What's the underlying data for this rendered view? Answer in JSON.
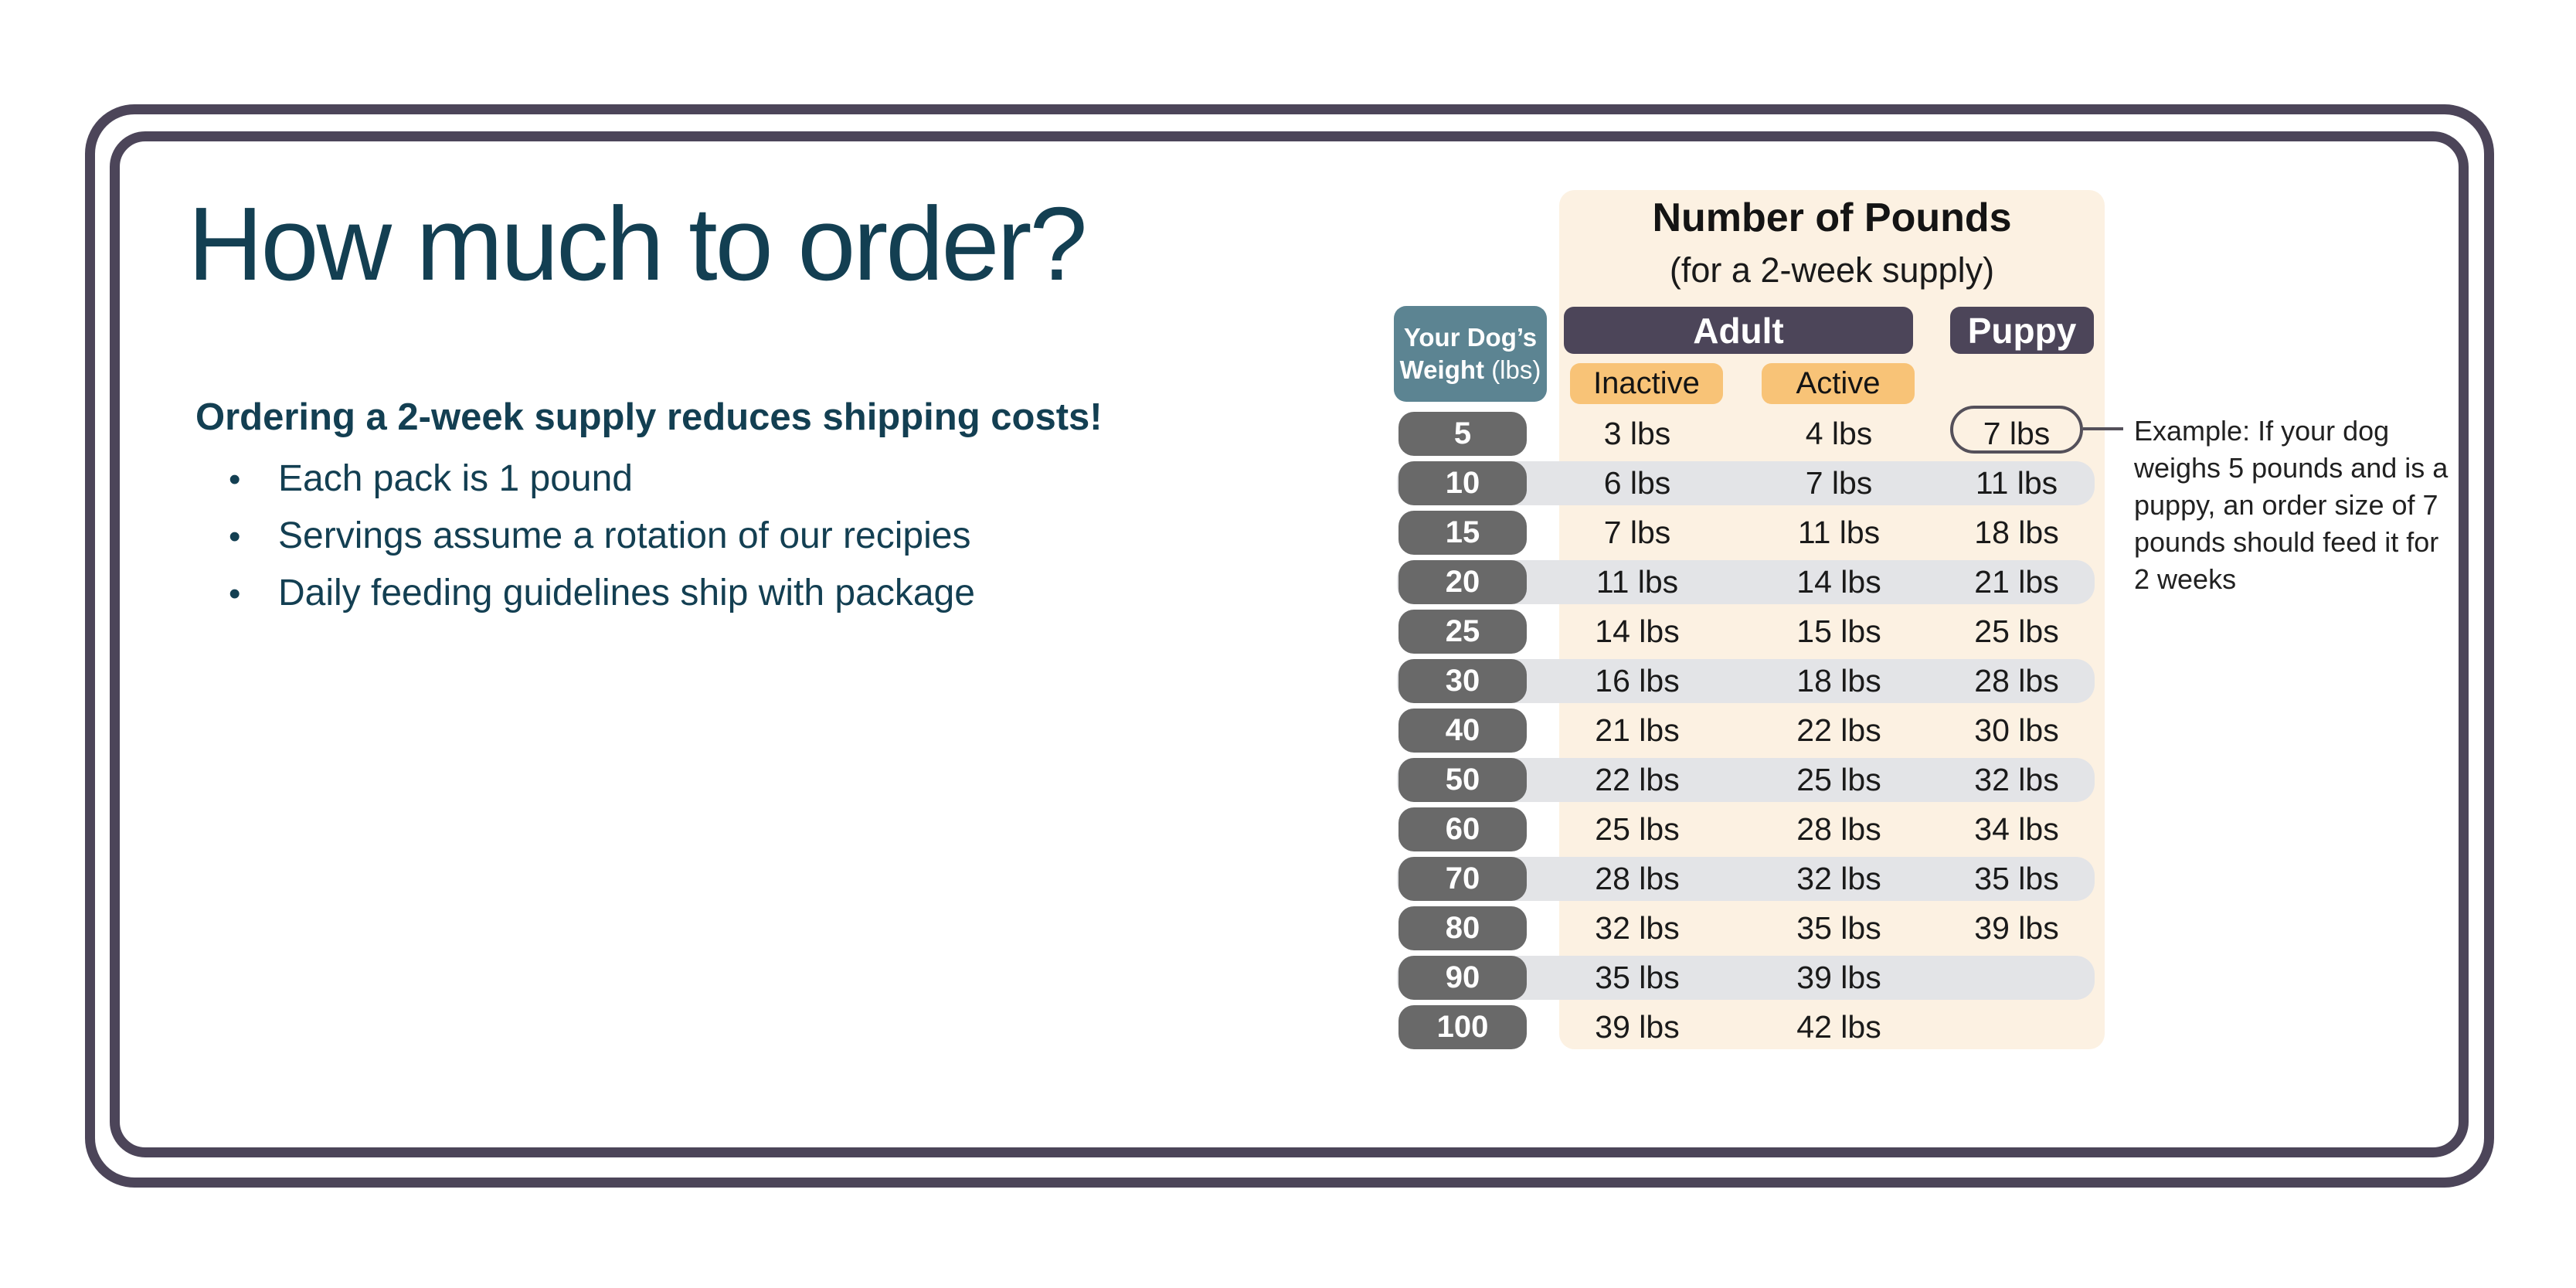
{
  "slide": {
    "title": "How much to order?",
    "intro": "Ordering a 2-week supply reduces shipping costs!",
    "bullet_marker": "•",
    "bullets": [
      "Each pack is 1 pound",
      "Servings assume a rotation of our recipies",
      "Daily feeding guidelines ship with package"
    ]
  },
  "table": {
    "title": "Number of Pounds",
    "subtitle": "(for a 2-week supply)",
    "weight_header": {
      "line1": "Your Dog’s",
      "line2_bold": "Weight",
      "line2_unit": "(lbs)"
    },
    "adult_label": "Adult",
    "puppy_label": "Puppy",
    "inactive_label": "Inactive",
    "active_label": "Active",
    "rows": [
      {
        "weight": "5",
        "inactive": "3 lbs",
        "active": "4 lbs",
        "puppy": "7 lbs",
        "puppy_highlighted": true
      },
      {
        "weight": "10",
        "inactive": "6 lbs",
        "active": "7 lbs",
        "puppy": "11 lbs"
      },
      {
        "weight": "15",
        "inactive": "7 lbs",
        "active": "11 lbs",
        "puppy": "18 lbs"
      },
      {
        "weight": "20",
        "inactive": "11 lbs",
        "active": "14 lbs",
        "puppy": "21 lbs"
      },
      {
        "weight": "25",
        "inactive": "14 lbs",
        "active": "15 lbs",
        "puppy": "25 lbs"
      },
      {
        "weight": "30",
        "inactive": "16 lbs",
        "active": "18 lbs",
        "puppy": "28 lbs"
      },
      {
        "weight": "40",
        "inactive": "21 lbs",
        "active": "22 lbs",
        "puppy": "30 lbs"
      },
      {
        "weight": "50",
        "inactive": "22 lbs",
        "active": "25 lbs",
        "puppy": "32 lbs"
      },
      {
        "weight": "60",
        "inactive": "25 lbs",
        "active": "28 lbs",
        "puppy": "34 lbs"
      },
      {
        "weight": "70",
        "inactive": "28 lbs",
        "active": "32 lbs",
        "puppy": "35 lbs"
      },
      {
        "weight": "80",
        "inactive": "32 lbs",
        "active": "35 lbs",
        "puppy": "39 lbs"
      },
      {
        "weight": "90",
        "inactive": "35 lbs",
        "active": "39 lbs",
        "puppy": ""
      },
      {
        "weight": "100",
        "inactive": "39 lbs",
        "active": "42 lbs",
        "puppy": ""
      }
    ]
  },
  "callout": {
    "lines": [
      "Example: If your dog",
      "weighs 5 pounds and is a",
      "puppy, an order size of 7",
      "pounds should feed it for",
      "2 weeks"
    ]
  },
  "colors": {
    "slide_border": "#4C4559",
    "group_header_bg": "#4C4559",
    "chip_bg": "#F8C377",
    "weight_header_bg": "#5C8492",
    "weight_pill_bg": "#696969",
    "row_band_bg": "#E3E4E7",
    "panel_bg": "#FCF1E2",
    "heading_text": "#133F52",
    "table_text": "#1A1A1A",
    "callout_outline": "#54505A"
  }
}
